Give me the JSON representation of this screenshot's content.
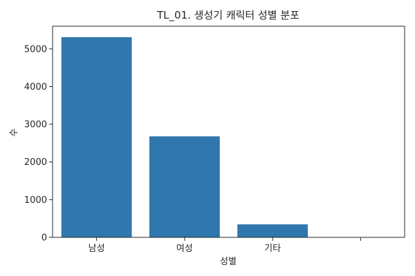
{
  "chart_data": {
    "type": "bar",
    "title": "TL_01. 생성기 캐릭터 성별 분포",
    "xlabel": "성별",
    "ylabel": "수",
    "categories": [
      "남성",
      "여성",
      "기타",
      ""
    ],
    "values": [
      5310,
      2680,
      345,
      0
    ],
    "ylim": [
      0,
      5600
    ],
    "yticks": [
      0,
      1000,
      2000,
      3000,
      4000,
      5000
    ],
    "grid": false,
    "bar_color": "#2f77ad"
  }
}
